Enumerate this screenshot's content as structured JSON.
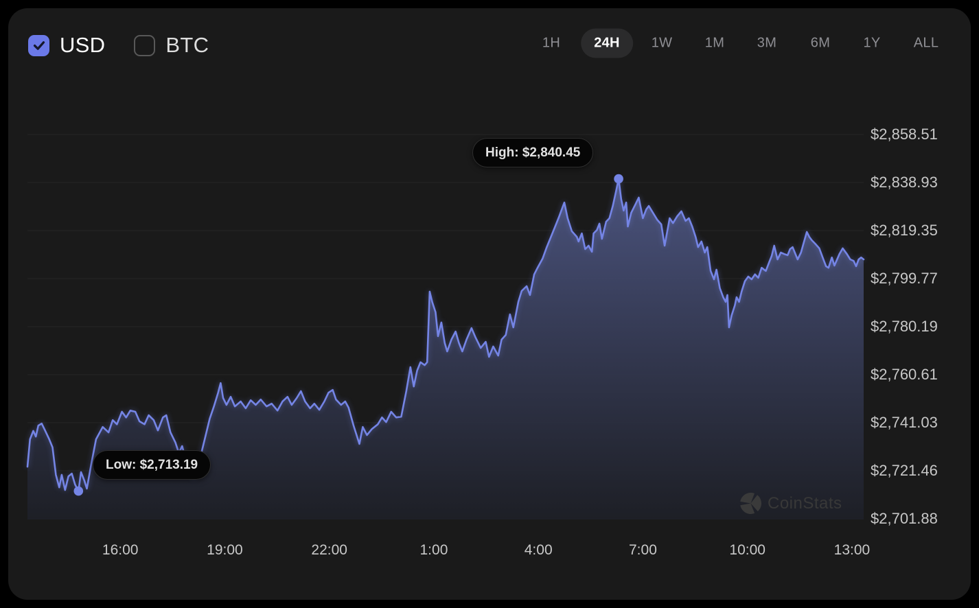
{
  "header": {
    "currency_toggles": [
      {
        "label": "USD",
        "checked": true
      },
      {
        "label": "BTC",
        "checked": false
      }
    ],
    "range_tabs": [
      {
        "label": "1H",
        "active": false
      },
      {
        "label": "24H",
        "active": true
      },
      {
        "label": "1W",
        "active": false
      },
      {
        "label": "1M",
        "active": false
      },
      {
        "label": "3M",
        "active": false
      },
      {
        "label": "6M",
        "active": false
      },
      {
        "label": "1Y",
        "active": false
      },
      {
        "label": "ALL",
        "active": false
      }
    ]
  },
  "watermark": {
    "text": "CoinStats",
    "icon": "pie-chart-icon"
  },
  "colors": {
    "accent": "#6b79e8",
    "line": "#7585e6",
    "fill_top": "#4f5886",
    "fill_bottom": "#1e2028",
    "panel_bg": "#1a1a1a",
    "grid": "rgba(255,255,255,0.055)",
    "tooltip_bg": "#060606"
  },
  "chart_data": {
    "type": "area",
    "title": "",
    "xlabel": "",
    "ylabel": "",
    "time_range": "24H",
    "grid": "horizontal",
    "legend": "none",
    "y_axis": {
      "ticks": [
        {
          "label": "$2,858.51",
          "value": 2858.51
        },
        {
          "label": "$2,838.93",
          "value": 2838.93
        },
        {
          "label": "$2,819.35",
          "value": 2819.35
        },
        {
          "label": "$2,799.77",
          "value": 2799.77
        },
        {
          "label": "$2,780.19",
          "value": 2780.19
        },
        {
          "label": "$2,760.61",
          "value": 2760.61
        },
        {
          "label": "$2,741.03",
          "value": 2741.03
        },
        {
          "label": "$2,721.46",
          "value": 2721.46
        },
        {
          "label": "$2,701.88",
          "value": 2701.88
        }
      ]
    },
    "x_axis": {
      "ticks": [
        {
          "label": "16:00",
          "f": 0.111
        },
        {
          "label": "19:00",
          "f": 0.236
        },
        {
          "label": "22:00",
          "f": 0.361
        },
        {
          "label": "1:00",
          "f": 0.486
        },
        {
          "label": "4:00",
          "f": 0.611
        },
        {
          "label": "7:00",
          "f": 0.736
        },
        {
          "label": "10:00",
          "f": 0.861
        },
        {
          "label": "13:00",
          "f": 0.986
        }
      ]
    },
    "markers": {
      "high": {
        "f": 0.707,
        "value": 2840.45,
        "label": "High: $2,840.45"
      },
      "low": {
        "f": 0.061,
        "value": 2713.19,
        "label": "Low: $2,713.19"
      }
    },
    "points": [
      [
        0.0,
        2723.1
      ],
      [
        0.003,
        2734.3
      ],
      [
        0.007,
        2737.7
      ],
      [
        0.01,
        2735.4
      ],
      [
        0.013,
        2739.9
      ],
      [
        0.017,
        2740.7
      ],
      [
        0.021,
        2737.9
      ],
      [
        0.026,
        2734.3
      ],
      [
        0.03,
        2731.0
      ],
      [
        0.034,
        2719.8
      ],
      [
        0.038,
        2714.7
      ],
      [
        0.041,
        2719.8
      ],
      [
        0.045,
        2713.6
      ],
      [
        0.049,
        2719.2
      ],
      [
        0.053,
        2720.3
      ],
      [
        0.057,
        2715.8
      ],
      [
        0.061,
        2713.19
      ],
      [
        0.064,
        2720.9
      ],
      [
        0.068,
        2717.5
      ],
      [
        0.071,
        2714.2
      ],
      [
        0.076,
        2723.7
      ],
      [
        0.082,
        2734.3
      ],
      [
        0.09,
        2739.3
      ],
      [
        0.097,
        2737.1
      ],
      [
        0.102,
        2742.1
      ],
      [
        0.107,
        2740.4
      ],
      [
        0.113,
        2745.5
      ],
      [
        0.118,
        2743.2
      ],
      [
        0.123,
        2746.0
      ],
      [
        0.129,
        2745.5
      ],
      [
        0.134,
        2741.6
      ],
      [
        0.14,
        2740.4
      ],
      [
        0.145,
        2744.1
      ],
      [
        0.151,
        2742.1
      ],
      [
        0.156,
        2737.9
      ],
      [
        0.162,
        2743.2
      ],
      [
        0.166,
        2744.1
      ],
      [
        0.171,
        2737.1
      ],
      [
        0.177,
        2732.9
      ],
      [
        0.181,
        2728.7
      ],
      [
        0.185,
        2731.5
      ],
      [
        0.189,
        2726.5
      ],
      [
        0.194,
        2722.6
      ],
      [
        0.199,
        2718.4
      ],
      [
        0.204,
        2725.4
      ],
      [
        0.208,
        2728.7
      ],
      [
        0.212,
        2734.3
      ],
      [
        0.218,
        2742.7
      ],
      [
        0.223,
        2747.7
      ],
      [
        0.228,
        2753.3
      ],
      [
        0.231,
        2757.2
      ],
      [
        0.234,
        2751.1
      ],
      [
        0.238,
        2748.3
      ],
      [
        0.243,
        2751.6
      ],
      [
        0.248,
        2747.7
      ],
      [
        0.255,
        2749.7
      ],
      [
        0.261,
        2746.9
      ],
      [
        0.267,
        2750.2
      ],
      [
        0.273,
        2748.3
      ],
      [
        0.279,
        2750.5
      ],
      [
        0.286,
        2747.7
      ],
      [
        0.292,
        2748.8
      ],
      [
        0.299,
        2746.0
      ],
      [
        0.305,
        2749.7
      ],
      [
        0.311,
        2751.6
      ],
      [
        0.316,
        2748.3
      ],
      [
        0.322,
        2751.1
      ],
      [
        0.327,
        2753.9
      ],
      [
        0.332,
        2749.7
      ],
      [
        0.338,
        2746.9
      ],
      [
        0.343,
        2748.8
      ],
      [
        0.349,
        2746.3
      ],
      [
        0.355,
        2749.7
      ],
      [
        0.36,
        2753.3
      ],
      [
        0.365,
        2754.4
      ],
      [
        0.369,
        2750.5
      ],
      [
        0.375,
        2748.3
      ],
      [
        0.38,
        2749.7
      ],
      [
        0.384,
        2747.2
      ],
      [
        0.39,
        2739.9
      ],
      [
        0.397,
        2732.4
      ],
      [
        0.401,
        2739.3
      ],
      [
        0.406,
        2736.0
      ],
      [
        0.412,
        2738.5
      ],
      [
        0.419,
        2740.4
      ],
      [
        0.424,
        2743.2
      ],
      [
        0.429,
        2741.3
      ],
      [
        0.435,
        2745.5
      ],
      [
        0.441,
        2743.2
      ],
      [
        0.447,
        2743.5
      ],
      [
        0.453,
        2753.9
      ],
      [
        0.458,
        2763.7
      ],
      [
        0.462,
        2755.8
      ],
      [
        0.466,
        2762.3
      ],
      [
        0.47,
        2765.7
      ],
      [
        0.475,
        2764.5
      ],
      [
        0.478,
        2765.7
      ],
      [
        0.481,
        2794.5
      ],
      [
        0.484,
        2790.3
      ],
      [
        0.488,
        2786.1
      ],
      [
        0.491,
        2776.3
      ],
      [
        0.495,
        2781.9
      ],
      [
        0.499,
        2773.5
      ],
      [
        0.502,
        2770.1
      ],
      [
        0.507,
        2774.9
      ],
      [
        0.512,
        2778.2
      ],
      [
        0.516,
        2773.5
      ],
      [
        0.52,
        2770.1
      ],
      [
        0.525,
        2774.9
      ],
      [
        0.531,
        2779.6
      ],
      [
        0.536,
        2775.7
      ],
      [
        0.542,
        2771.5
      ],
      [
        0.548,
        2774.0
      ],
      [
        0.552,
        2767.9
      ],
      [
        0.557,
        2772.1
      ],
      [
        0.563,
        2768.4
      ],
      [
        0.567,
        2774.9
      ],
      [
        0.572,
        2776.8
      ],
      [
        0.577,
        2785.2
      ],
      [
        0.581,
        2779.9
      ],
      [
        0.587,
        2790.3
      ],
      [
        0.591,
        2794.7
      ],
      [
        0.597,
        2796.7
      ],
      [
        0.601,
        2793.1
      ],
      [
        0.606,
        2801.5
      ],
      [
        0.61,
        2804.2
      ],
      [
        0.616,
        2807.9
      ],
      [
        0.621,
        2812.6
      ],
      [
        0.626,
        2816.8
      ],
      [
        0.631,
        2821.0
      ],
      [
        0.636,
        2825.2
      ],
      [
        0.642,
        2830.8
      ],
      [
        0.646,
        2824.4
      ],
      [
        0.651,
        2819.1
      ],
      [
        0.657,
        2816.8
      ],
      [
        0.659,
        2814.9
      ],
      [
        0.663,
        2818.2
      ],
      [
        0.667,
        2811.8
      ],
      [
        0.671,
        2813.2
      ],
      [
        0.675,
        2810.7
      ],
      [
        0.677,
        2818.2
      ],
      [
        0.681,
        2819.6
      ],
      [
        0.684,
        2822.2
      ],
      [
        0.687,
        2816.0
      ],
      [
        0.692,
        2823.0
      ],
      [
        0.696,
        2824.4
      ],
      [
        0.7,
        2829.4
      ],
      [
        0.704,
        2835.6
      ],
      [
        0.707,
        2840.45
      ],
      [
        0.71,
        2832.2
      ],
      [
        0.713,
        2827.5
      ],
      [
        0.716,
        2830.8
      ],
      [
        0.718,
        2821.0
      ],
      [
        0.722,
        2826.6
      ],
      [
        0.727,
        2830.0
      ],
      [
        0.731,
        2832.8
      ],
      [
        0.736,
        2824.4
      ],
      [
        0.74,
        2828.0
      ],
      [
        0.743,
        2829.4
      ],
      [
        0.747,
        2827.2
      ],
      [
        0.753,
        2823.8
      ],
      [
        0.758,
        2821.9
      ],
      [
        0.762,
        2813.2
      ],
      [
        0.768,
        2824.4
      ],
      [
        0.772,
        2822.4
      ],
      [
        0.777,
        2825.2
      ],
      [
        0.782,
        2827.2
      ],
      [
        0.787,
        2823.3
      ],
      [
        0.791,
        2824.4
      ],
      [
        0.795,
        2821.0
      ],
      [
        0.799,
        2816.8
      ],
      [
        0.802,
        2812.6
      ],
      [
        0.806,
        2814.9
      ],
      [
        0.81,
        2810.4
      ],
      [
        0.813,
        2812.6
      ],
      [
        0.817,
        2802.9
      ],
      [
        0.821,
        2799.5
      ],
      [
        0.824,
        2803.4
      ],
      [
        0.828,
        2795.9
      ],
      [
        0.832,
        2792.2
      ],
      [
        0.835,
        2790.3
      ],
      [
        0.837,
        2793.1
      ],
      [
        0.839,
        2779.9
      ],
      [
        0.842,
        2784.7
      ],
      [
        0.846,
        2788.9
      ],
      [
        0.848,
        2792.2
      ],
      [
        0.851,
        2790.3
      ],
      [
        0.854,
        2794.5
      ],
      [
        0.858,
        2798.7
      ],
      [
        0.862,
        2800.6
      ],
      [
        0.866,
        2799.5
      ],
      [
        0.87,
        2801.5
      ],
      [
        0.874,
        2800.1
      ],
      [
        0.878,
        2804.2
      ],
      [
        0.883,
        2802.9
      ],
      [
        0.887,
        2806.5
      ],
      [
        0.89,
        2809.0
      ],
      [
        0.893,
        2813.2
      ],
      [
        0.897,
        2807.6
      ],
      [
        0.901,
        2810.4
      ],
      [
        0.905,
        2809.8
      ],
      [
        0.909,
        2809.3
      ],
      [
        0.912,
        2811.8
      ],
      [
        0.915,
        2812.6
      ],
      [
        0.919,
        2809.3
      ],
      [
        0.921,
        2807.6
      ],
      [
        0.925,
        2810.4
      ],
      [
        0.928,
        2814.0
      ],
      [
        0.932,
        2818.8
      ],
      [
        0.935,
        2816.8
      ],
      [
        0.938,
        2815.4
      ],
      [
        0.942,
        2814.0
      ],
      [
        0.947,
        2812.1
      ],
      [
        0.951,
        2808.4
      ],
      [
        0.955,
        2804.8
      ],
      [
        0.958,
        2804.2
      ],
      [
        0.962,
        2808.4
      ],
      [
        0.965,
        2805.1
      ],
      [
        0.971,
        2809.8
      ],
      [
        0.975,
        2812.1
      ],
      [
        0.98,
        2809.8
      ],
      [
        0.984,
        2807.6
      ],
      [
        0.988,
        2807.0
      ],
      [
        0.991,
        2804.8
      ],
      [
        0.994,
        2807.6
      ],
      [
        0.997,
        2808.4
      ],
      [
        1.0,
        2807.6
      ]
    ]
  }
}
